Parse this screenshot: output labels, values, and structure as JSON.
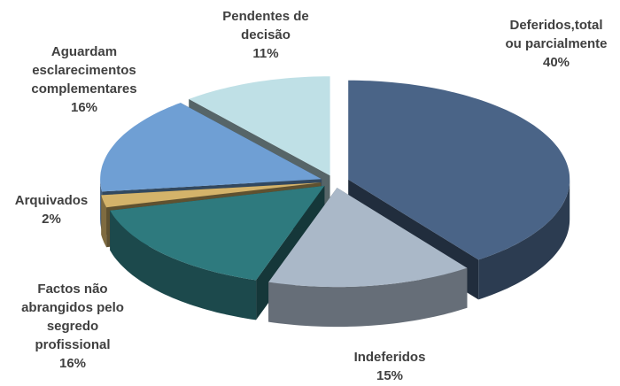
{
  "chart_data": {
    "type": "pie3d",
    "categories": [
      "Deferidos,total ou parcialmente",
      "Indeferidos",
      "Factos não abrangidos pelo segredo profissional",
      "Arquivados",
      "Aguardam esclarecimentos complementares",
      "Pendentes de decisão"
    ],
    "values": [
      40,
      15,
      16,
      2,
      16,
      11
    ],
    "value_labels": [
      "40%",
      "15%",
      "16%",
      "2%",
      "16%",
      "11%"
    ],
    "colors": [
      "#4a6487",
      "#aab8c8",
      "#2e7a7e",
      "#d4b36a",
      "#6f9fd4",
      "#bfe0e6"
    ]
  }
}
